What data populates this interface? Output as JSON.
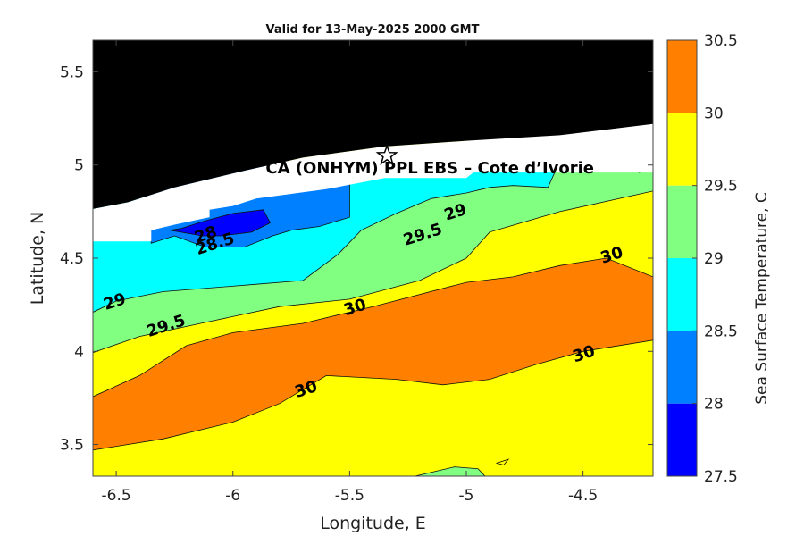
{
  "chart_data": {
    "type": "contour",
    "title": "Valid for 13-May-2025 2000 GMT",
    "xlabel": "Longitude, E",
    "ylabel": "Latitude, N",
    "xlim": [
      -6.6,
      -4.2
    ],
    "ylim": [
      3.33,
      5.67
    ],
    "xticks": [
      -6.5,
      -6,
      -5.5,
      -5,
      -4.5
    ],
    "xtick_labels": [
      "-6.5",
      "-6",
      "-5.5",
      "-5",
      "-4.5"
    ],
    "yticks": [
      3.5,
      4,
      4.5,
      5,
      5.5
    ],
    "ytick_labels": [
      "3.5",
      "4",
      "4.5",
      "5",
      "5.5"
    ],
    "colorbar": {
      "label": "Sea Surface Temperature, C",
      "levels": [
        27.5,
        28,
        28.5,
        29,
        29.5,
        30,
        30.5
      ],
      "level_labels": [
        "27.5",
        "28",
        "28.5",
        "29",
        "29.5",
        "30",
        "30.5"
      ],
      "colors": [
        "#0000ff",
        "#0080ff",
        "#00ffff",
        "#80ff80",
        "#ffff00",
        "#ff8000"
      ]
    },
    "land_color": "#000000",
    "mask_color": "#ffffff",
    "site": {
      "label": "CA (ONHYM) PPL EBS  – Cote d’Ivorie",
      "marker": "star",
      "lon": -5.34,
      "lat": 5.05
    },
    "contour_labels": [
      {
        "text": "28",
        "lon": -6.11,
        "lat": 4.6
      },
      {
        "text": "28.5",
        "lon": -6.07,
        "lat": 4.55
      },
      {
        "text": "29",
        "lon": -5.04,
        "lat": 4.72
      },
      {
        "text": "29.5",
        "lon": -5.18,
        "lat": 4.6
      },
      {
        "text": "29",
        "lon": -6.5,
        "lat": 4.24
      },
      {
        "text": "29.5",
        "lon": -6.28,
        "lat": 4.11
      },
      {
        "text": "30",
        "lon": -5.47,
        "lat": 4.21
      },
      {
        "text": "30",
        "lon": -4.37,
        "lat": 4.49
      },
      {
        "text": "30",
        "lon": -5.68,
        "lat": 3.77
      },
      {
        "text": "30",
        "lon": -4.49,
        "lat": 3.96
      }
    ]
  }
}
